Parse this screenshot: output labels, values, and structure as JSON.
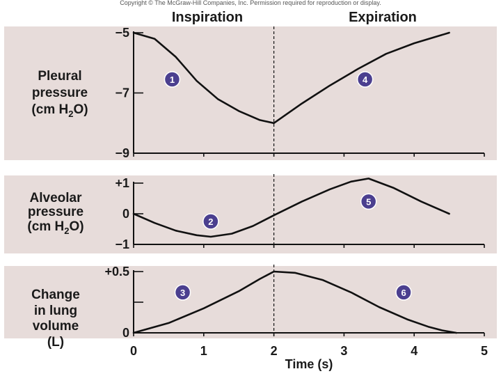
{
  "copyright": "Copyright © The McGraw-Hill Companies, Inc. Permission required for reproduction or display.",
  "phases": {
    "inspiration": "Inspiration",
    "expiration": "Expiration"
  },
  "chart_data": [
    {
      "type": "line",
      "ylabel_lines": [
        "Pleural",
        "pressure",
        "(cm H",
        "2",
        "O)"
      ],
      "ylim": [
        -9,
        -5
      ],
      "yticks": [
        {
          "v": -5,
          "label": "−5"
        },
        {
          "v": -7,
          "label": "−7"
        },
        {
          "v": -9,
          "label": "−9"
        }
      ],
      "x": [
        0,
        0.3,
        0.6,
        0.9,
        1.2,
        1.5,
        1.8,
        2.0,
        2.4,
        2.8,
        3.2,
        3.6,
        4.0,
        4.5
      ],
      "y": [
        -5.0,
        -5.2,
        -5.8,
        -6.6,
        -7.2,
        -7.6,
        -7.9,
        -8.0,
        -7.35,
        -6.75,
        -6.2,
        -5.7,
        -5.35,
        -5.0
      ],
      "markers": [
        {
          "id": "1",
          "x": 0.55,
          "y": -6.55
        },
        {
          "id": "4",
          "x": 3.3,
          "y": -6.55
        }
      ]
    },
    {
      "type": "line",
      "ylabel_lines": [
        "Alveolar",
        "pressure",
        "(cm H",
        "2",
        "O)"
      ],
      "ylim": [
        -1,
        1
      ],
      "yticks": [
        {
          "v": 1,
          "label": "+1"
        },
        {
          "v": 0,
          "label": "0"
        },
        {
          "v": -1,
          "label": "−1"
        }
      ],
      "x": [
        0,
        0.3,
        0.6,
        0.9,
        1.1,
        1.4,
        1.7,
        2.0,
        2.4,
        2.8,
        3.1,
        3.35,
        3.7,
        4.1,
        4.5
      ],
      "y": [
        0,
        -0.3,
        -0.55,
        -0.7,
        -0.75,
        -0.65,
        -0.4,
        -0.05,
        0.4,
        0.8,
        1.05,
        1.15,
        0.85,
        0.4,
        0
      ],
      "markers": [
        {
          "id": "2",
          "x": 1.1,
          "y": -0.25
        },
        {
          "id": "5",
          "x": 3.35,
          "y": 0.4
        }
      ]
    },
    {
      "type": "line",
      "ylabel_lines": [
        "Change",
        "in lung",
        "volume",
        "(L)"
      ],
      "ylim": [
        0,
        0.5
      ],
      "yticks": [
        {
          "v": 0.5,
          "label": "+0.5"
        },
        {
          "v": 0.25,
          "label": ""
        },
        {
          "v": 0,
          "label": "0"
        }
      ],
      "xticks": [
        0,
        1,
        2,
        3,
        4,
        5
      ],
      "xlabel": "Time (s)",
      "x": [
        0,
        0.5,
        1.0,
        1.5,
        1.8,
        2.0,
        2.3,
        2.7,
        3.1,
        3.5,
        3.9,
        4.2,
        4.4,
        4.6
      ],
      "y": [
        0,
        0.08,
        0.2,
        0.34,
        0.44,
        0.5,
        0.49,
        0.43,
        0.33,
        0.21,
        0.11,
        0.05,
        0.02,
        0
      ],
      "markers": [
        {
          "id": "3",
          "x": 0.7,
          "y": 0.33
        },
        {
          "id": "6",
          "x": 3.85,
          "y": 0.33
        }
      ]
    }
  ]
}
